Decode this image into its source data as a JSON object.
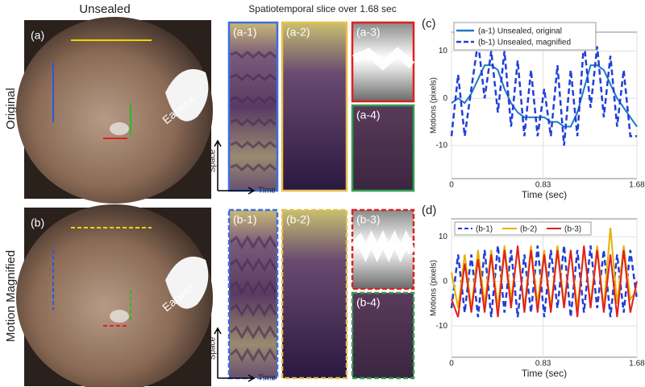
{
  "header": {
    "left_title": "Unsealed",
    "middle_title": "Spatiotemporal slice over 1.68 sec"
  },
  "rows": [
    {
      "row_label": "Original",
      "photo_label": "(a)",
      "earwax": "Earwax",
      "slices": [
        "(a-1)",
        "(a-2)",
        "(a-3)",
        "(a-4)"
      ],
      "space": "Space",
      "time": "Time"
    },
    {
      "row_label": "Motion Magnified",
      "photo_label": "(b)",
      "earwax": "Earwax",
      "slices": [
        "(b-1)",
        "(b-2)",
        "(b-3)",
        "(b-4)"
      ],
      "space": "Space",
      "time": "Time"
    }
  ],
  "chart_data": [
    {
      "type": "line",
      "panel_label": "(c)",
      "xlabel": "Time (sec)",
      "ylabel": "Motions (pixels)",
      "x": [
        0,
        0.06,
        0.12,
        0.18,
        0.24,
        0.3,
        0.36,
        0.42,
        0.48,
        0.54,
        0.6,
        0.66,
        0.72,
        0.78,
        0.84,
        0.9,
        0.96,
        1.02,
        1.08,
        1.14,
        1.2,
        1.26,
        1.32,
        1.38,
        1.44,
        1.5,
        1.56,
        1.62,
        1.68
      ],
      "series": [
        {
          "name": "(a-1) Unsealed, original",
          "color": "#1f77c4",
          "line_style": "solid",
          "values": [
            -1,
            0,
            -1,
            1,
            4,
            7,
            7,
            6,
            2,
            -1,
            -3,
            -4,
            -4,
            -4,
            -4,
            -5,
            -5,
            -6,
            -6,
            -3,
            2,
            7,
            7,
            6,
            3,
            0,
            -2,
            -4,
            -6
          ]
        },
        {
          "name": "(b-1) Unsealed, magnified",
          "color": "#1f3fd8",
          "line_style": "dashed",
          "values": [
            -8,
            5,
            -8,
            2,
            12,
            0,
            10,
            -3,
            10,
            -6,
            8,
            -8,
            6,
            -8,
            2,
            -8,
            7,
            -10,
            6,
            -8,
            12,
            -2,
            11,
            -4,
            9,
            -6,
            6,
            -8,
            -8
          ]
        }
      ],
      "xlim": [
        0,
        1.68
      ],
      "xticks": [
        0,
        0.83,
        1.68
      ],
      "ylim": [
        -17,
        14
      ],
      "yticks": [
        -10,
        0,
        10
      ],
      "grid": true,
      "legend": "upper left"
    },
    {
      "type": "line",
      "panel_label": "(d)",
      "xlabel": "Time (sec)",
      "ylabel": "Motions (pixels)",
      "x": [
        0,
        0.06,
        0.12,
        0.18,
        0.24,
        0.3,
        0.36,
        0.42,
        0.48,
        0.54,
        0.6,
        0.66,
        0.72,
        0.78,
        0.84,
        0.9,
        0.96,
        1.02,
        1.08,
        1.14,
        1.2,
        1.26,
        1.32,
        1.38,
        1.44,
        1.5,
        1.56,
        1.62,
        1.68
      ],
      "series": [
        {
          "name": "(b-1)",
          "color": "#1f3fd8",
          "line_style": "dashed",
          "values": [
            -6,
            6,
            -7,
            6,
            -8,
            7,
            -8,
            8,
            -7,
            7,
            -8,
            6,
            -7,
            8,
            -8,
            7,
            -6,
            8,
            -8,
            7,
            -7,
            8,
            -6,
            7,
            -8,
            6,
            -7,
            7,
            -4
          ]
        },
        {
          "name": "(b-2)",
          "color": "#e8b000",
          "line_style": "solid",
          "values": [
            2,
            -6,
            6,
            -6,
            7,
            -5,
            7,
            -6,
            8,
            -4,
            7,
            -6,
            8,
            -5,
            7,
            -6,
            8,
            -5,
            7,
            -6,
            7,
            -5,
            8,
            -6,
            12,
            -5,
            8,
            -4,
            -2
          ]
        },
        {
          "name": "(b-3)",
          "color": "#e02020",
          "line_style": "solid",
          "values": [
            -4,
            -8,
            4,
            -7,
            5,
            -7,
            6,
            -8,
            7,
            -6,
            8,
            -7,
            7,
            -7,
            6,
            -7,
            7,
            -6,
            7,
            -8,
            8,
            -6,
            7,
            -7,
            6,
            -8,
            7,
            -7,
            0
          ]
        }
      ],
      "xlim": [
        0,
        1.68
      ],
      "xticks": [
        0,
        0.83,
        1.68
      ],
      "ylim": [
        -17,
        14
      ],
      "yticks": [
        -10,
        0,
        10
      ],
      "grid": true,
      "legend": "top"
    }
  ]
}
